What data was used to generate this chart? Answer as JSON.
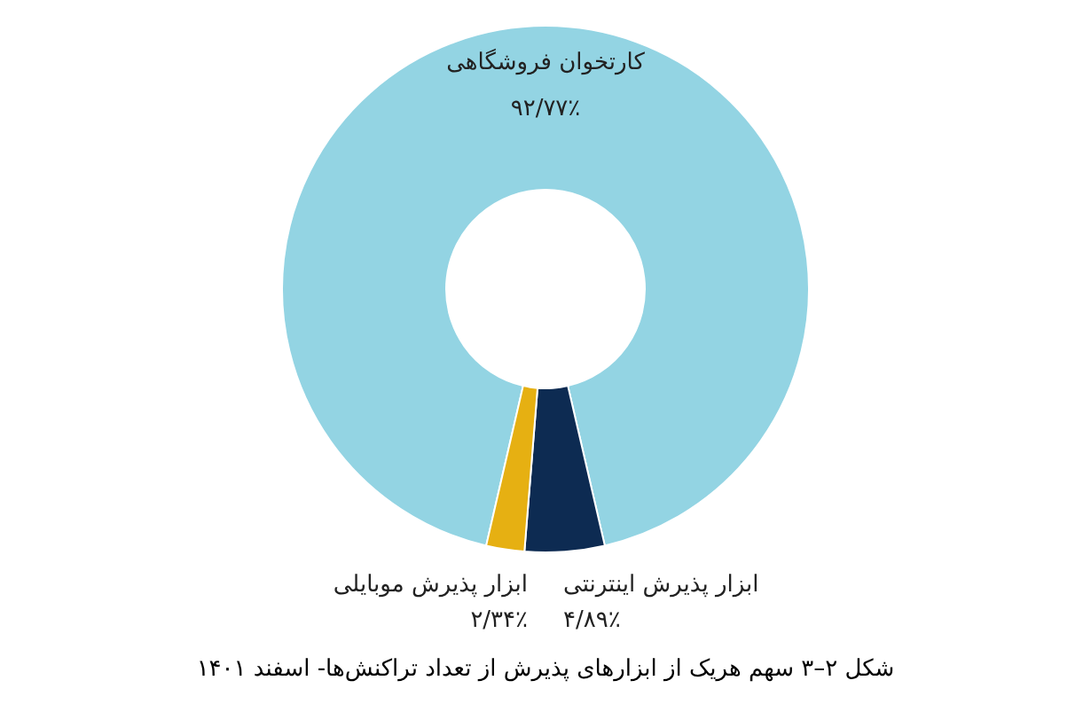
{
  "chart_data": {
    "type": "donut",
    "title": "شکل ۲–۳ سهم هریک از ابزارهای پذیرش از تعداد تراکنش‌ها- اسفند ۱۴۰۱",
    "categories": [
      "کارتخوان فروشگاهی",
      "ابزار پذیرش اینترنتی",
      "ابزار پذیرش موبایلی"
    ],
    "values": [
      92.77,
      4.89,
      2.34
    ],
    "value_labels": [
      "۹۲/۷۷٪",
      "۴/۸۹٪",
      "۲/۳۴٪"
    ],
    "colors": [
      "#93d4e3",
      "#0d2b52",
      "#e6b012"
    ],
    "legend": false
  }
}
